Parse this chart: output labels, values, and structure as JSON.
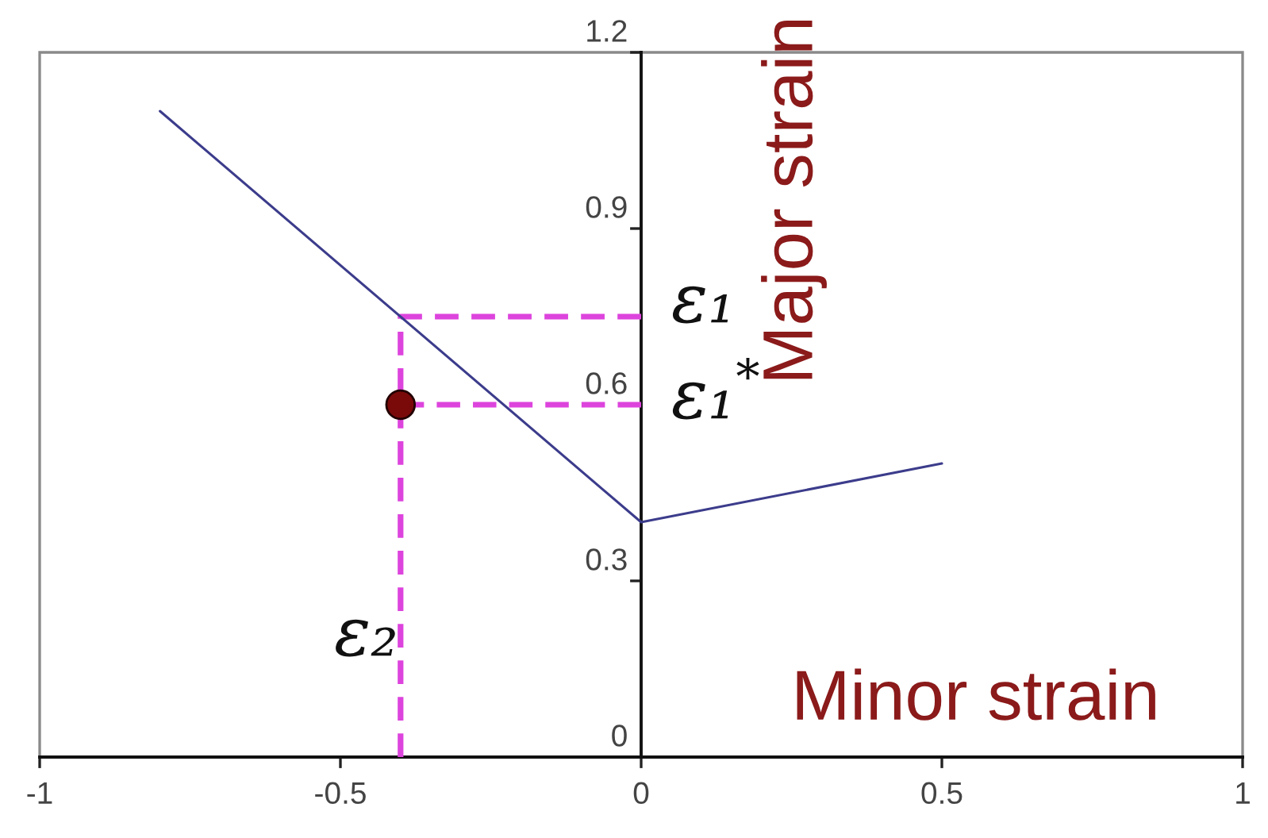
{
  "chart_data": {
    "type": "line",
    "xlabel": "Minor strain",
    "ylabel": "Major strain",
    "xlim": [
      -1,
      1
    ],
    "xticks": [
      -1,
      -0.5,
      0,
      0.5,
      1
    ],
    "ylim": [
      0,
      1.2
    ],
    "yticks": [
      0,
      0.3,
      0.6,
      0.9,
      1.2
    ],
    "series": [
      {
        "color": "#3c3c8c",
        "x": [
          -0.8,
          0,
          0.5
        ],
        "values": [
          1.1,
          0.4,
          0.5
        ],
        "line_style": "solid"
      },
      {
        "color": "#dd44dd",
        "x": [
          -0.4,
          -0.4,
          0
        ],
        "values": [
          0,
          0.75,
          0.75
        ],
        "line_style": "dashed"
      },
      {
        "color": "#dd44dd",
        "x": [
          -0.4,
          0
        ],
        "values": [
          0.6,
          0.6
        ],
        "line_style": "dashed"
      },
      {
        "type": "scatter",
        "color": "#7a0a0a",
        "x": [
          -0.4
        ],
        "values": [
          0.6
        ],
        "marker": "circle"
      }
    ],
    "annotations": [
      "ε₁",
      "ε₁$^{*}$",
      "ε₂"
    ]
  }
}
